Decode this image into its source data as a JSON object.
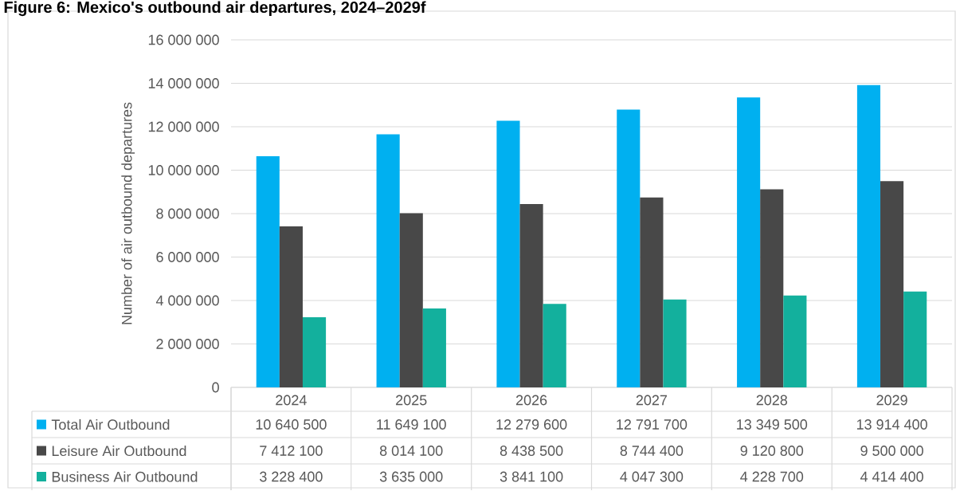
{
  "chart_data": {
    "type": "bar",
    "title": "Figure 6: Mexico's outbound air departures, 2024–2029f",
    "ylabel": "Number of air outbound departures",
    "categories": [
      "2024",
      "2025",
      "2026",
      "2027",
      "2028",
      "2029"
    ],
    "series": [
      {
        "name": "Total Air Outbound",
        "color": "#00b0f0",
        "values": [
          10640500,
          11649100,
          12279600,
          12791700,
          13349500,
          13914400
        ],
        "value_labels": [
          "10 640 500",
          "11 649 100",
          "12 279 600",
          "12 791 700",
          "13 349 500",
          "13 914 400"
        ]
      },
      {
        "name": "Leisure Air Outbound",
        "color": "#484848",
        "values": [
          7412100,
          8014100,
          8438500,
          8744400,
          9120800,
          9500000
        ],
        "value_labels": [
          "7 412 100",
          "8 014 100",
          "8 438 500",
          "8 744 400",
          "9 120 800",
          "9 500 000"
        ]
      },
      {
        "name": "Business Air Outbound",
        "color": "#13b09d",
        "values": [
          3228400,
          3635000,
          3841100,
          4047300,
          4228700,
          4414400
        ],
        "value_labels": [
          "3 228 400",
          "3 635 000",
          "3 841 100",
          "4 047 300",
          "4 228 700",
          "4 414 400"
        ]
      }
    ],
    "ylim": [
      0,
      16000000
    ],
    "yticks": [
      {
        "value": 0,
        "label": "0"
      },
      {
        "value": 2000000,
        "label": "2 000 000"
      },
      {
        "value": 4000000,
        "label": "4 000 000"
      },
      {
        "value": 6000000,
        "label": "6 000 000"
      },
      {
        "value": 8000000,
        "label": "8 000 000"
      },
      {
        "value": 10000000,
        "label": "10 000 000"
      },
      {
        "value": 12000000,
        "label": "12 000 000"
      },
      {
        "value": 14000000,
        "label": "14 000 000"
      },
      {
        "value": 16000000,
        "label": "16 000 000"
      }
    ],
    "grid": "y",
    "legend": "bottom"
  }
}
